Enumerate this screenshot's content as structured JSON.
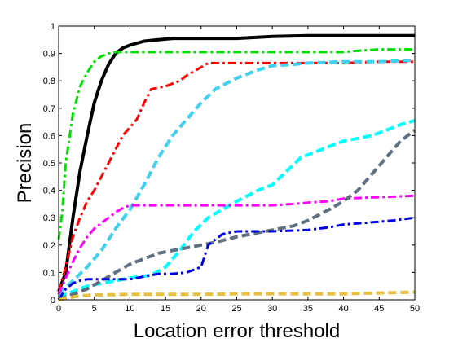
{
  "chart_data": {
    "type": "line",
    "title": "",
    "xlabel": "Location error threshold",
    "ylabel": "Precision",
    "xlim": [
      0,
      50
    ],
    "ylim": [
      0,
      1
    ],
    "xticks": [
      0,
      5,
      10,
      15,
      20,
      25,
      30,
      35,
      40,
      45,
      50
    ],
    "yticks": [
      0,
      0.1,
      0.2,
      0.3,
      0.4,
      0.5,
      0.6,
      0.7,
      0.8,
      0.9,
      1
    ],
    "xtick_labels": [
      "0",
      "5",
      "10",
      "15",
      "20",
      "25",
      "30",
      "35",
      "40",
      "45",
      "50"
    ],
    "ytick_labels": [
      "0",
      "0.1",
      "0.2",
      "0.3",
      "0.4",
      "0.5",
      "0.6",
      "0.7",
      "0.8",
      "0.9",
      "1"
    ],
    "grid": false,
    "legend": "none",
    "series": [
      {
        "color": "#000000",
        "dash": "solid",
        "width": 4,
        "x": [
          0,
          1,
          2,
          3,
          4,
          5,
          6,
          7,
          8,
          9,
          10,
          12,
          14,
          16,
          20,
          25,
          30,
          35,
          40,
          45,
          50
        ],
        "y": [
          0.03,
          0.1,
          0.3,
          0.47,
          0.6,
          0.72,
          0.8,
          0.86,
          0.9,
          0.92,
          0.93,
          0.945,
          0.95,
          0.955,
          0.955,
          0.955,
          0.962,
          0.965,
          0.965,
          0.965,
          0.965
        ]
      },
      {
        "color": "#00e000",
        "dash": "dashdot",
        "width": 3,
        "x": [
          0,
          0.5,
          1,
          2,
          3,
          4,
          5,
          6,
          7,
          8,
          10,
          15,
          20,
          25,
          30,
          35,
          40,
          42,
          45,
          50
        ],
        "y": [
          0.22,
          0.32,
          0.5,
          0.68,
          0.78,
          0.83,
          0.87,
          0.89,
          0.9,
          0.905,
          0.905,
          0.905,
          0.905,
          0.905,
          0.905,
          0.905,
          0.905,
          0.91,
          0.915,
          0.915
        ]
      },
      {
        "color": "#ff0000",
        "dash": "dashdot",
        "width": 3,
        "x": [
          0,
          1,
          2,
          3,
          4,
          5,
          6,
          7,
          8,
          9,
          10,
          11,
          12,
          13,
          15,
          17,
          18,
          20,
          21,
          25,
          30,
          35,
          40,
          45,
          50
        ],
        "y": [
          0.03,
          0.12,
          0.23,
          0.3,
          0.36,
          0.4,
          0.45,
          0.5,
          0.55,
          0.6,
          0.63,
          0.66,
          0.72,
          0.77,
          0.78,
          0.8,
          0.82,
          0.85,
          0.865,
          0.865,
          0.865,
          0.865,
          0.865,
          0.87,
          0.87
        ]
      },
      {
        "color": "#40d0f0",
        "dash": "dashed",
        "width": 4,
        "x": [
          0,
          2,
          4,
          6,
          8,
          10,
          12,
          14,
          16,
          18,
          20,
          22,
          25,
          28,
          30,
          33,
          35,
          40,
          45,
          50
        ],
        "y": [
          0.02,
          0.07,
          0.12,
          0.18,
          0.26,
          0.33,
          0.42,
          0.52,
          0.6,
          0.66,
          0.72,
          0.77,
          0.81,
          0.84,
          0.855,
          0.86,
          0.865,
          0.87,
          0.87,
          0.875
        ]
      },
      {
        "color": "#00ffff",
        "dash": "dashed",
        "width": 4,
        "x": [
          0,
          2,
          4,
          6,
          8,
          10,
          13,
          15,
          17,
          19,
          21,
          23,
          25,
          28,
          30,
          32,
          34,
          36,
          38,
          40,
          42,
          44,
          46,
          48,
          50
        ],
        "y": [
          0.01,
          0.03,
          0.05,
          0.06,
          0.07,
          0.08,
          0.09,
          0.12,
          0.18,
          0.25,
          0.3,
          0.33,
          0.36,
          0.4,
          0.42,
          0.47,
          0.52,
          0.54,
          0.56,
          0.58,
          0.59,
          0.6,
          0.62,
          0.64,
          0.655
        ]
      },
      {
        "color": "#ff00ff",
        "dash": "dashdot",
        "width": 3,
        "x": [
          0,
          1,
          2,
          3,
          4,
          5,
          6,
          7,
          8,
          9,
          10,
          12,
          15,
          20,
          25,
          30,
          33,
          35,
          38,
          40,
          45,
          50
        ],
        "y": [
          0.02,
          0.08,
          0.14,
          0.19,
          0.23,
          0.26,
          0.28,
          0.3,
          0.32,
          0.335,
          0.345,
          0.345,
          0.345,
          0.345,
          0.345,
          0.345,
          0.35,
          0.355,
          0.36,
          0.37,
          0.375,
          0.38
        ]
      },
      {
        "color": "#607080",
        "dash": "dashed",
        "width": 4,
        "x": [
          0,
          2,
          4,
          6,
          8,
          10,
          12,
          14,
          16,
          18,
          20,
          22,
          25,
          28,
          30,
          33,
          35,
          38,
          40,
          42,
          44,
          46,
          48,
          50
        ],
        "y": [
          0,
          0.02,
          0.04,
          0.07,
          0.1,
          0.13,
          0.15,
          0.17,
          0.18,
          0.19,
          0.2,
          0.21,
          0.23,
          0.245,
          0.255,
          0.27,
          0.29,
          0.33,
          0.36,
          0.4,
          0.46,
          0.52,
          0.58,
          0.62
        ]
      },
      {
        "color": "#0000e0",
        "dash": "dashdot",
        "width": 3,
        "x": [
          0,
          1,
          2,
          3,
          4,
          5,
          6,
          8,
          10,
          12,
          14,
          16,
          18,
          20,
          21,
          22,
          23,
          25,
          28,
          30,
          35,
          38,
          40,
          45,
          47,
          50
        ],
        "y": [
          0,
          0.04,
          0.06,
          0.07,
          0.075,
          0.075,
          0.075,
          0.075,
          0.075,
          0.085,
          0.095,
          0.095,
          0.1,
          0.12,
          0.2,
          0.22,
          0.24,
          0.25,
          0.25,
          0.25,
          0.255,
          0.265,
          0.275,
          0.285,
          0.29,
          0.3
        ]
      },
      {
        "color": "#e8c040",
        "dash": "dashed",
        "width": 4,
        "x": [
          0,
          1,
          2,
          3,
          5,
          10,
          15,
          20,
          25,
          30,
          35,
          40,
          45,
          50
        ],
        "y": [
          0,
          0.005,
          0.01,
          0.015,
          0.018,
          0.02,
          0.02,
          0.02,
          0.022,
          0.022,
          0.022,
          0.022,
          0.025,
          0.028
        ]
      }
    ]
  }
}
